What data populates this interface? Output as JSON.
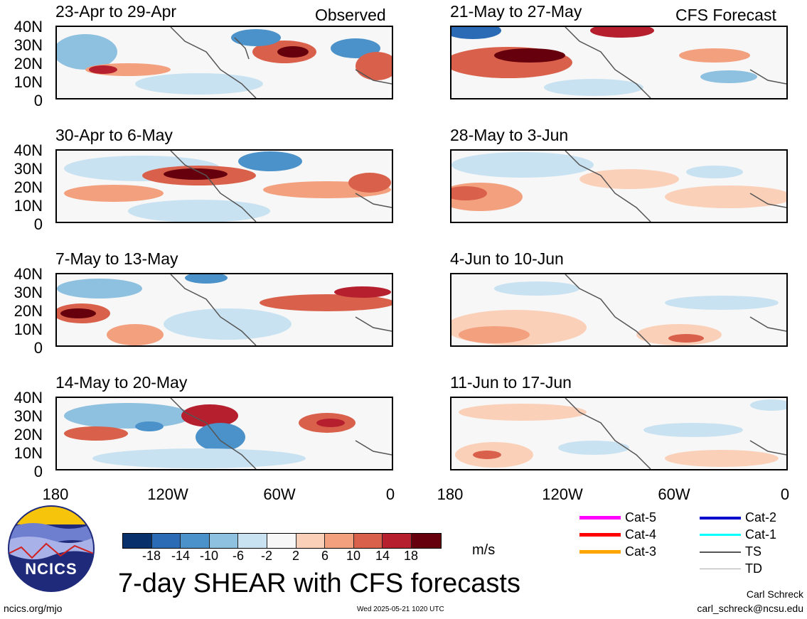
{
  "panels": {
    "observed": [
      {
        "label": "23-Apr to 29-Apr"
      },
      {
        "label": "30-Apr to 6-May"
      },
      {
        "label": "7-May to 13-May"
      },
      {
        "label": "14-May to 20-May"
      }
    ],
    "forecast": [
      {
        "label": "21-May to 27-May"
      },
      {
        "label": "28-May to 3-Jun"
      },
      {
        "label": "4-Jun to 10-Jun"
      },
      {
        "label": "11-Jun to 17-Jun"
      }
    ],
    "observed_header": "Observed",
    "forecast_header": "CFS Forecast"
  },
  "axes": {
    "y_ticks": [
      "40N",
      "30N",
      "20N",
      "10N",
      "0"
    ],
    "x_ticks": [
      "180",
      "120W",
      "60W",
      "0"
    ]
  },
  "colorbar": {
    "labels": [
      "-18",
      "-14",
      "-10",
      "-6",
      "-2",
      "2",
      "6",
      "10",
      "14",
      "18"
    ],
    "colors": [
      "#08306b",
      "#2b6bb5",
      "#4a92c9",
      "#8ec0df",
      "#c9e2f1",
      "#f7f7f7",
      "#fbd0b9",
      "#f3a07f",
      "#d9604a",
      "#b51f2e",
      "#67000d"
    ],
    "unit": "m/s"
  },
  "legend": {
    "items": [
      {
        "label": "Cat-5",
        "color": "#ff00ff"
      },
      {
        "label": "Cat-4",
        "color": "#ff0000"
      },
      {
        "label": "Cat-3",
        "color": "#ffa500"
      },
      {
        "label": "Cat-2",
        "color": "#0000cc"
      },
      {
        "label": "Cat-1",
        "color": "#00ffff"
      },
      {
        "label": "TS",
        "color": "#555555"
      },
      {
        "label": "TD",
        "color": "#aaaaaa"
      }
    ]
  },
  "title": "7-day SHEAR with CFS forecasts",
  "logo_text": "NCICS",
  "footer": {
    "url": "ncics.org/mjo",
    "timestamp": "Wed 2025-05-21 1020 UTC",
    "author": "Carl Schreck",
    "email": "carl_schreck@ncsu.edu"
  }
}
